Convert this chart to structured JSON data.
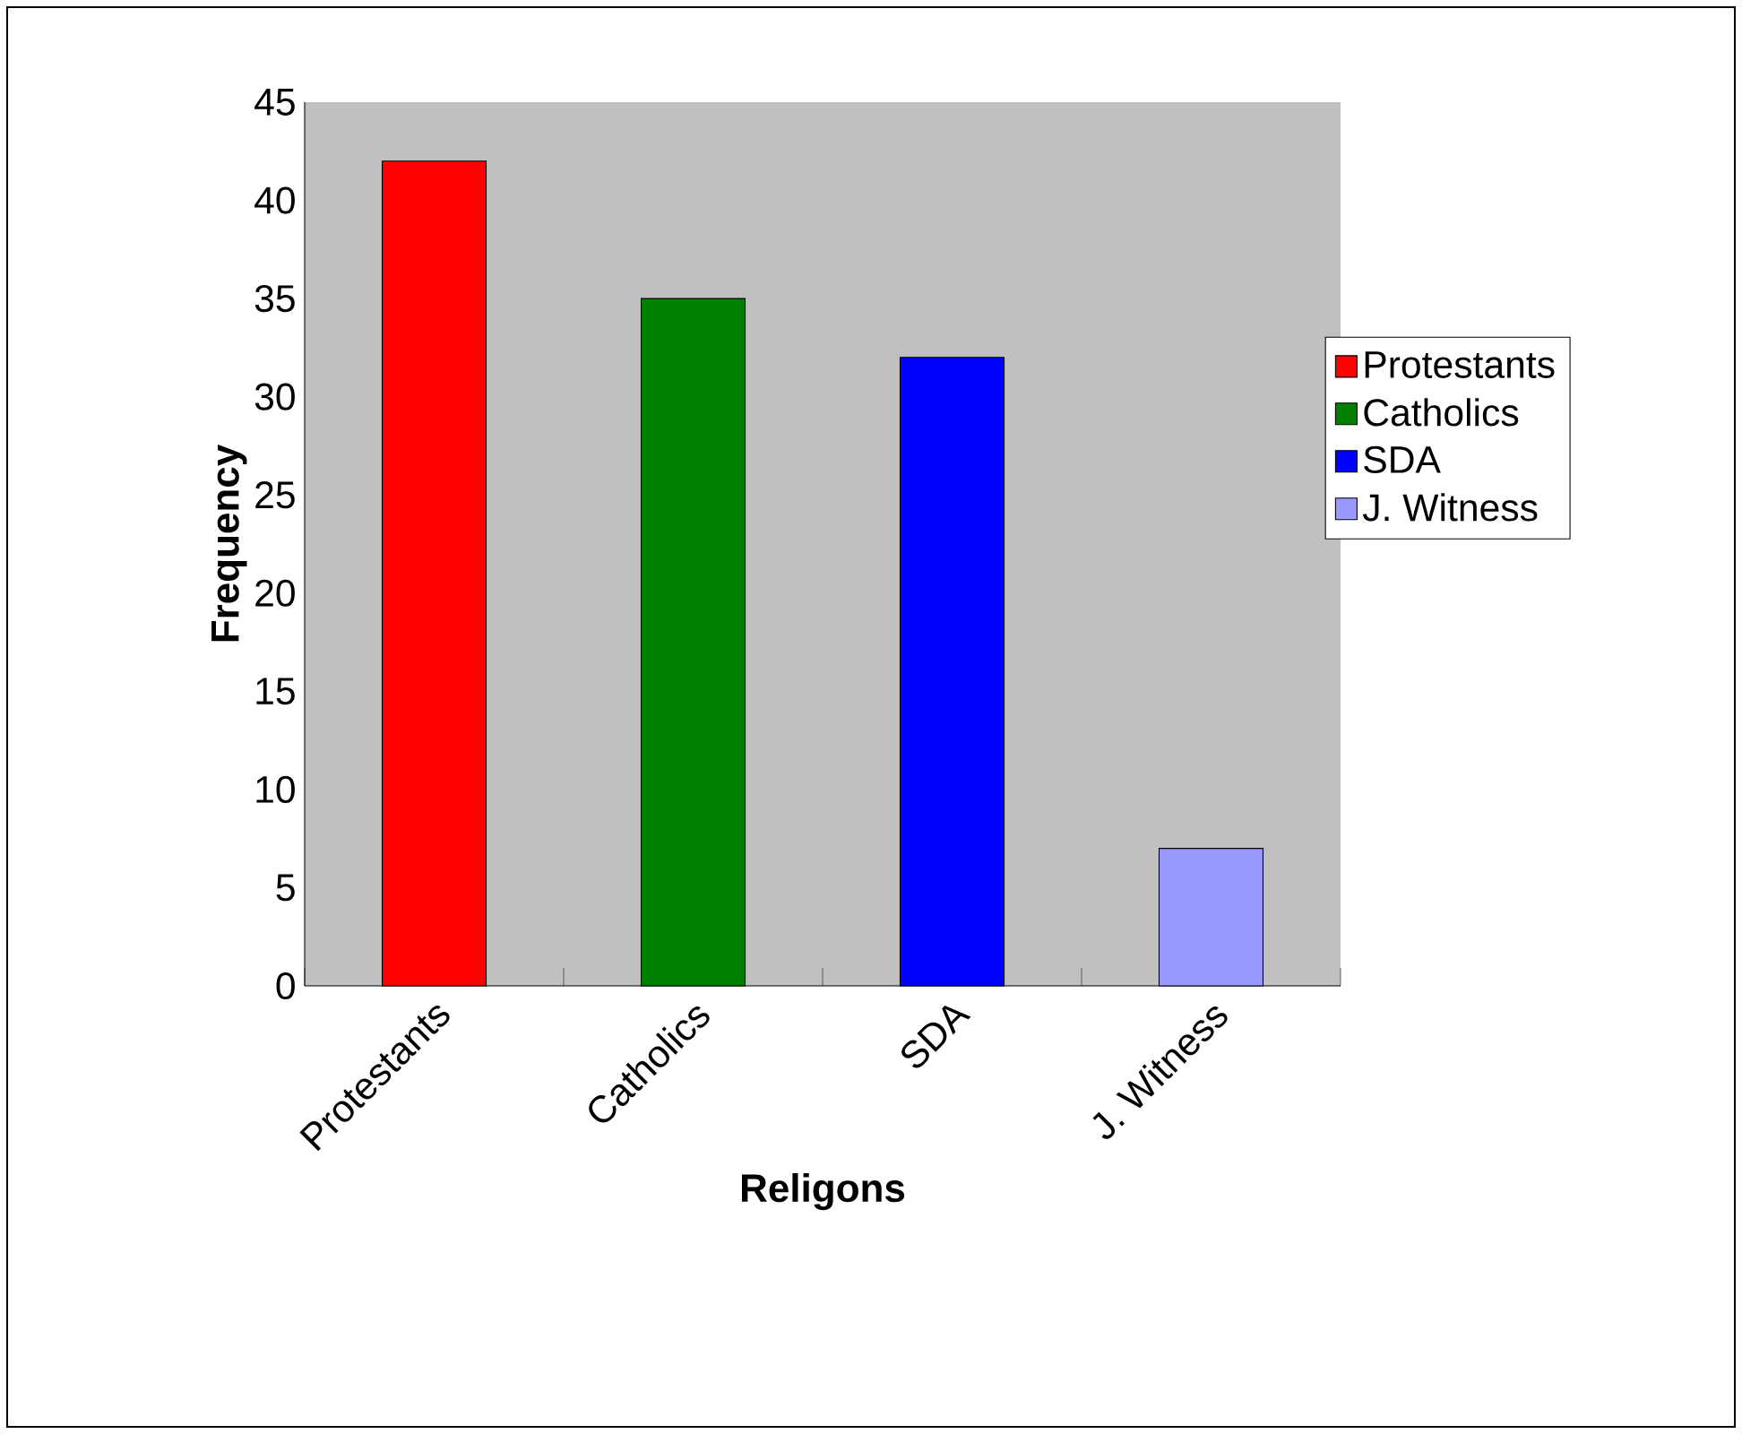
{
  "chart_data": {
    "type": "bar",
    "xlabel": "Religons",
    "ylabel": "Frequency",
    "categories": [
      "Protestants",
      "Catholics",
      "SDA",
      "J. Witness"
    ],
    "series": [
      {
        "name": "Protestants",
        "color": "#ff0000",
        "values": [
          42,
          null,
          null,
          null
        ]
      },
      {
        "name": "Catholics",
        "color": "#008000",
        "values": [
          null,
          35,
          null,
          null
        ]
      },
      {
        "name": "SDA",
        "color": "#0000ff",
        "values": [
          null,
          null,
          32,
          null
        ]
      },
      {
        "name": "J. Witness",
        "color": "#9999ff",
        "values": [
          null,
          null,
          null,
          7
        ]
      }
    ],
    "ylim": [
      0,
      45
    ],
    "yticks": [
      0,
      5,
      10,
      15,
      20,
      25,
      30,
      35,
      40,
      45
    ],
    "legend": "right"
  }
}
